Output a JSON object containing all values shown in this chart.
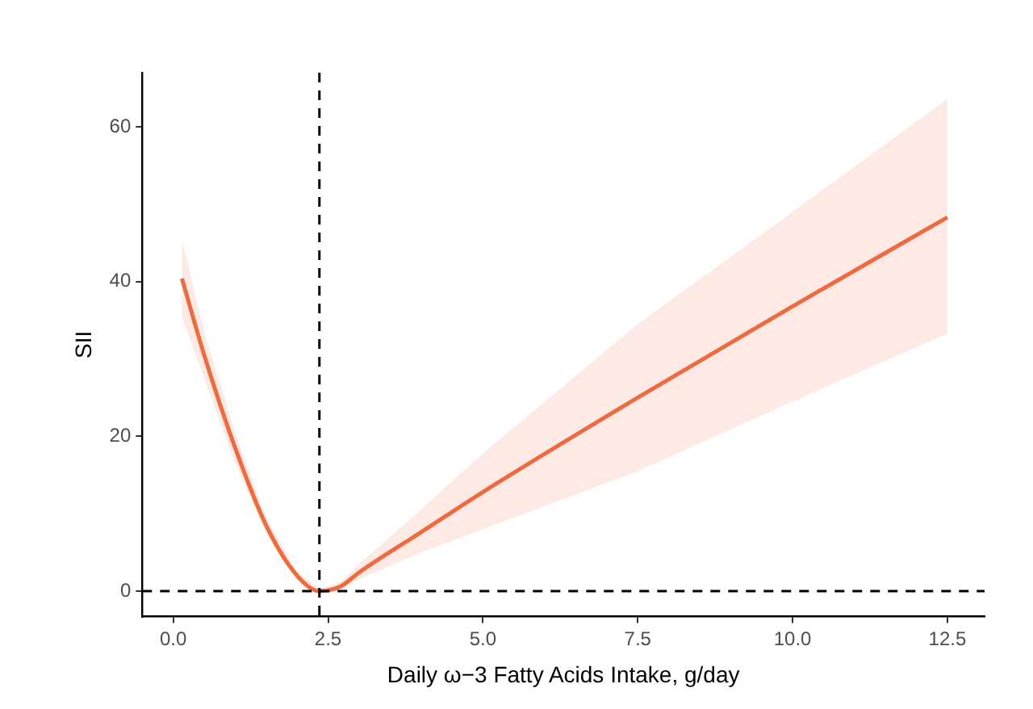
{
  "chart_data": {
    "type": "line",
    "xlabel": "Daily ω−3 Fatty Acids Intake, g/day",
    "ylabel": "SII",
    "x": [
      0.14,
      0.5,
      1.0,
      1.5,
      2.0,
      2.36,
      2.7,
      3.0,
      4.0,
      5.0,
      7.5,
      10.0,
      12.5
    ],
    "series": [
      {
        "color": "#ee6a3f",
        "values": [
          40.4,
          30.5,
          18.5,
          8.5,
          2.0,
          0,
          0.6,
          2.4,
          7.6,
          12.8,
          25.0,
          36.8,
          48.3
        ],
        "lower": [
          35.5,
          27.5,
          16.5,
          7.5,
          1.5,
          -0.3,
          0.1,
          1.5,
          5.0,
          8.0,
          15.5,
          24.5,
          33.3
        ],
        "upper": [
          45.5,
          33.5,
          20.5,
          9.5,
          2.5,
          0.3,
          1.2,
          3.5,
          10.5,
          17.8,
          34.5,
          49.0,
          63.6
        ]
      }
    ],
    "xlim": [
      -0.5,
      13.1
    ],
    "xticks": [
      {
        "value": 0,
        "label": "0.0"
      },
      2.5,
      {
        "value": 5,
        "label": "5.0"
      },
      7.5,
      {
        "value": 10,
        "label": "10.0"
      },
      12.5
    ],
    "ylim": [
      -3.3,
      67
    ],
    "yticks": [
      0,
      20,
      40,
      60
    ],
    "ref_lines": [
      {
        "axis": "y",
        "value": 0,
        "line_style": "dashed",
        "color": "#000000"
      },
      {
        "axis": "x",
        "value": 2.36,
        "line_style": "dashed",
        "color": "#000000"
      }
    ],
    "grid": false,
    "legend": false,
    "marker": "none",
    "line_style": "solid"
  }
}
